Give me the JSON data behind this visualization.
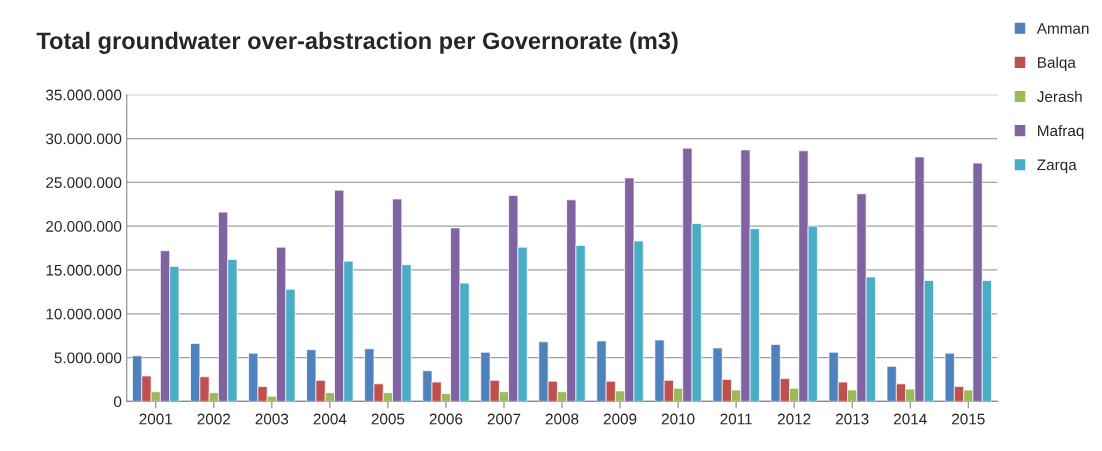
{
  "chart_data": {
    "type": "bar",
    "title": "Total groundwater over-abstraction per Governorate (m3)",
    "categories": [
      "2001",
      "2002",
      "2003",
      "2004",
      "2005",
      "2006",
      "2007",
      "2008",
      "2009",
      "2010",
      "2011",
      "2012",
      "2013",
      "2014",
      "2015"
    ],
    "series": [
      {
        "name": "Amman",
        "color": "#4f81bd",
        "values": [
          5200000,
          6600000,
          5500000,
          5900000,
          6000000,
          3500000,
          5600000,
          6800000,
          6900000,
          7000000,
          6100000,
          6500000,
          5600000,
          4000000,
          5500000
        ]
      },
      {
        "name": "Balqa",
        "color": "#c0504d",
        "values": [
          2900000,
          2800000,
          1700000,
          2400000,
          2000000,
          2200000,
          2400000,
          2300000,
          2300000,
          2400000,
          2500000,
          2600000,
          2200000,
          2000000,
          1700000
        ]
      },
      {
        "name": "Jerash",
        "color": "#9bbb59",
        "values": [
          1100000,
          1000000,
          600000,
          1000000,
          1000000,
          900000,
          1100000,
          1100000,
          1200000,
          1500000,
          1300000,
          1500000,
          1300000,
          1400000,
          1300000
        ]
      },
      {
        "name": "Mafraq",
        "color": "#8064a2",
        "values": [
          17200000,
          21600000,
          17600000,
          24100000,
          23100000,
          19800000,
          23500000,
          23000000,
          25500000,
          28900000,
          28700000,
          28600000,
          23700000,
          27900000,
          27200000
        ]
      },
      {
        "name": "Zarqa",
        "color": "#4bacc6",
        "values": [
          15400000,
          16200000,
          12800000,
          16000000,
          15600000,
          13500000,
          17600000,
          17800000,
          18300000,
          20300000,
          19700000,
          20000000,
          14200000,
          13800000,
          13800000
        ]
      }
    ],
    "ylim": [
      0,
      35000000
    ],
    "yticks": [
      0,
      {
        "value": 5000000,
        "label": "5.000.000"
      },
      {
        "value": 10000000,
        "label": "10.000.000"
      },
      {
        "value": 15000000,
        "label": "15.000.000"
      },
      {
        "value": 20000000,
        "label": "20.000.000"
      },
      {
        "value": 25000000,
        "label": "25.000.000"
      },
      {
        "value": 30000000,
        "label": "30.000.000"
      },
      {
        "value": 35000000,
        "label": "35.000.000"
      }
    ],
    "grid": "y",
    "legend": "right"
  }
}
